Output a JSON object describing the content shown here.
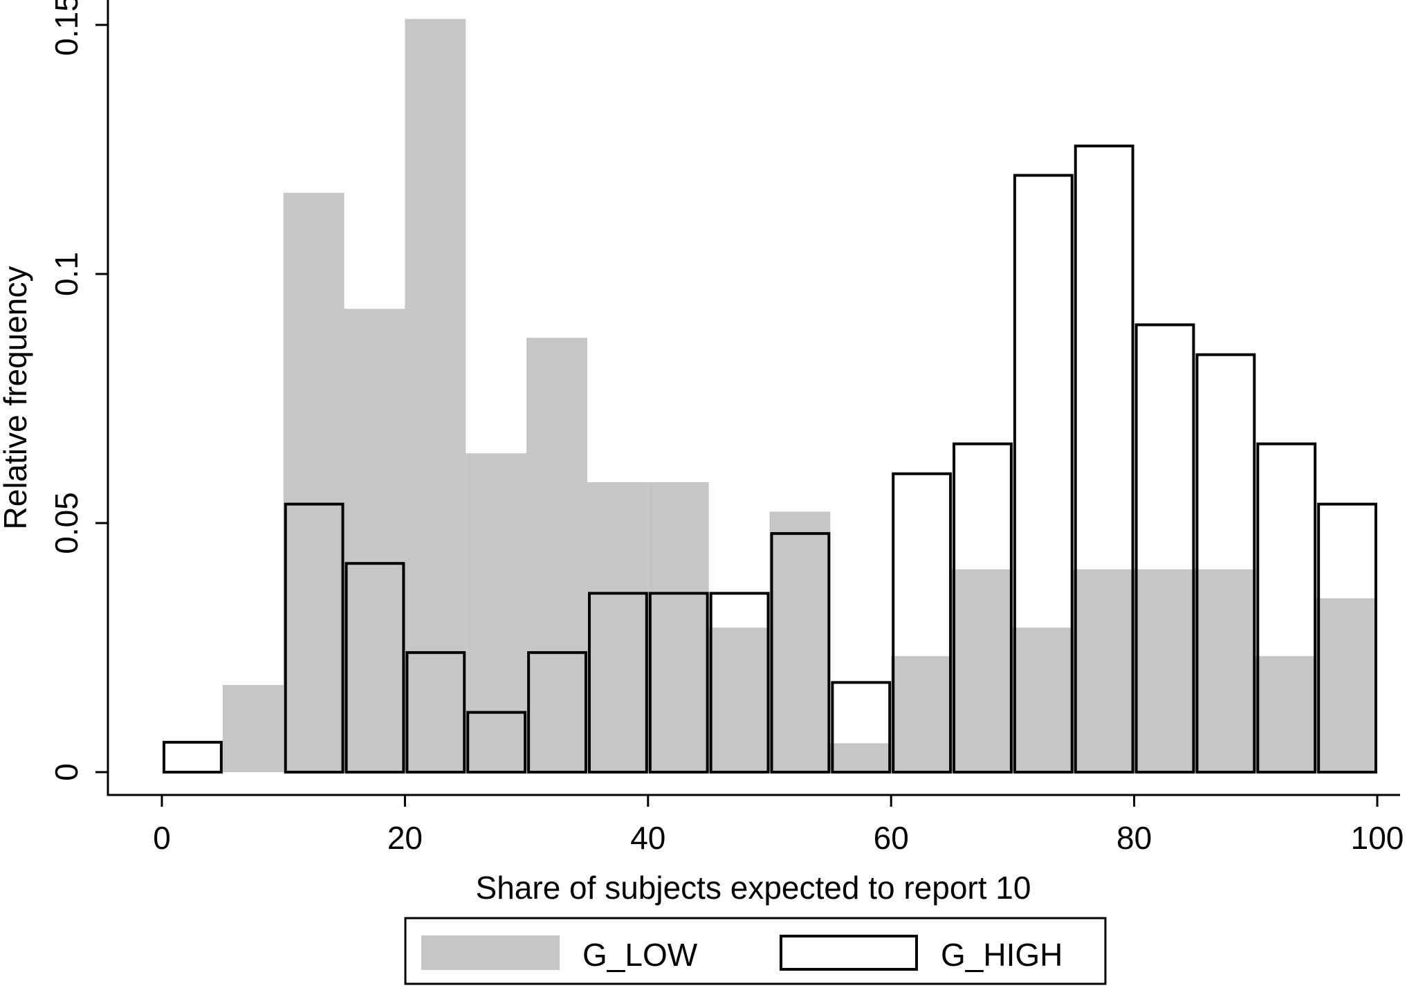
{
  "chart_data": {
    "type": "bar",
    "subtype": "overlaid-histogram",
    "title": "",
    "xlabel": "Share of subjects expected to report 10",
    "ylabel": "Relative frequency",
    "xlim": [
      0,
      100
    ],
    "ylim": [
      0,
      0.15
    ],
    "x_ticks": [
      0,
      20,
      40,
      60,
      80,
      100
    ],
    "x_tick_labels": [
      "0",
      "20",
      "40",
      "60",
      "80",
      "100"
    ],
    "y_ticks": [
      0,
      0.05,
      0.1,
      0.15
    ],
    "y_tick_labels": [
      "0",
      "0.05",
      "0.1",
      "0.15"
    ],
    "bin_width": 5,
    "bin_starts": [
      0,
      5,
      10,
      15,
      20,
      25,
      30,
      35,
      40,
      45,
      50,
      55,
      60,
      65,
      70,
      75,
      80,
      85,
      90,
      95
    ],
    "grid": false,
    "legend_position": "bottom",
    "series": [
      {
        "name": "G_LOW",
        "style": "filled",
        "color": "#c6c6c6",
        "values": [
          0,
          0.0175,
          0.1163,
          0.093,
          0.1512,
          0.064,
          0.0872,
          0.0582,
          0.0582,
          0.029,
          0.0523,
          0.0058,
          0.0233,
          0.0407,
          0.029,
          0.0407,
          0.0407,
          0.0407,
          0.0233,
          0.0349
        ]
      },
      {
        "name": "G_HIGH",
        "style": "outline",
        "color": "#000000",
        "values": [
          0.006,
          0,
          0.0538,
          0.0419,
          0.024,
          0.012,
          0.024,
          0.0359,
          0.0359,
          0.0359,
          0.0479,
          0.018,
          0.0599,
          0.0659,
          0.1198,
          0.1257,
          0.0898,
          0.0838,
          0.0659,
          0.0538
        ]
      }
    ]
  }
}
